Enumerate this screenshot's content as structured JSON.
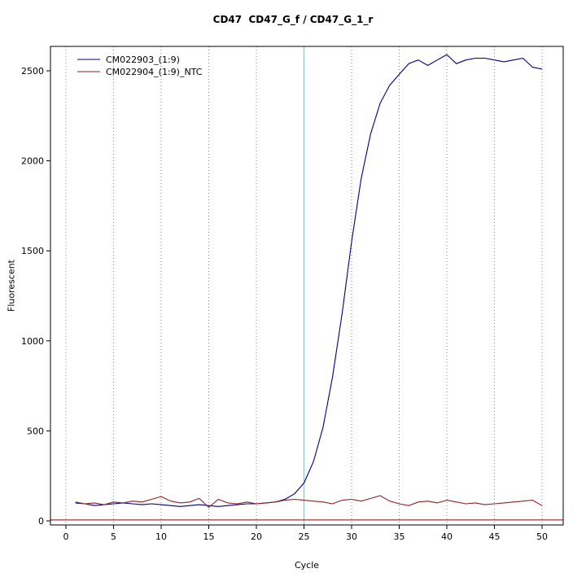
{
  "title": "CD47  CD47_G_f / CD47_G_1_r",
  "chart_data": {
    "type": "line",
    "title": "CD47  CD47_G_f / CD47_G_1_r",
    "xlabel": "Cycle",
    "ylabel": "Fluorescent",
    "xlim": [
      -1.6,
      52.2
    ],
    "ylim": [
      -60,
      2650
    ],
    "x_ticks": [
      0,
      5,
      10,
      15,
      20,
      25,
      30,
      35,
      40,
      45,
      50
    ],
    "y_ticks": [
      0,
      500,
      1000,
      1500,
      2000,
      2500
    ],
    "grid": "vertical-dotted",
    "grid_color": "#808080",
    "legend_position": "top-left",
    "threshold_line": {
      "y": 5,
      "color": "#8B0000"
    },
    "threshold_cycle_line": {
      "x": 25,
      "color": "#00FFFF"
    },
    "x": [
      1,
      2,
      3,
      4,
      5,
      6,
      7,
      8,
      9,
      10,
      11,
      12,
      13,
      14,
      15,
      16,
      17,
      18,
      19,
      20,
      21,
      22,
      23,
      24,
      25,
      26,
      27,
      28,
      29,
      30,
      31,
      32,
      33,
      34,
      35,
      36,
      37,
      38,
      39,
      40,
      41,
      42,
      43,
      44,
      45,
      46,
      47,
      48,
      49,
      50
    ],
    "series": [
      {
        "name": "CM022903_(1:9)",
        "color": "#000080",
        "values": [
          100,
          95,
          85,
          90,
          95,
          100,
          95,
          90,
          95,
          90,
          85,
          80,
          85,
          90,
          85,
          80,
          85,
          90,
          95,
          95,
          100,
          105,
          120,
          150,
          210,
          330,
          520,
          800,
          1150,
          1550,
          1900,
          2150,
          2320,
          2420,
          2480,
          2540,
          2560,
          2530,
          2560,
          2590,
          2540,
          2560,
          2570,
          2570,
          2560,
          2550,
          2560,
          2570,
          2520,
          2510
        ]
      },
      {
        "name": "CM022904_(1:9)_NTC",
        "color": "#8B2323",
        "values": [
          105,
          95,
          100,
          90,
          105,
          100,
          110,
          105,
          120,
          135,
          110,
          100,
          105,
          125,
          75,
          120,
          100,
          95,
          105,
          95,
          100,
          105,
          115,
          120,
          115,
          110,
          105,
          95,
          115,
          120,
          110,
          125,
          140,
          110,
          95,
          85,
          105,
          110,
          100,
          115,
          105,
          95,
          100,
          90,
          95,
          100,
          105,
          110,
          115,
          85
        ]
      }
    ]
  }
}
